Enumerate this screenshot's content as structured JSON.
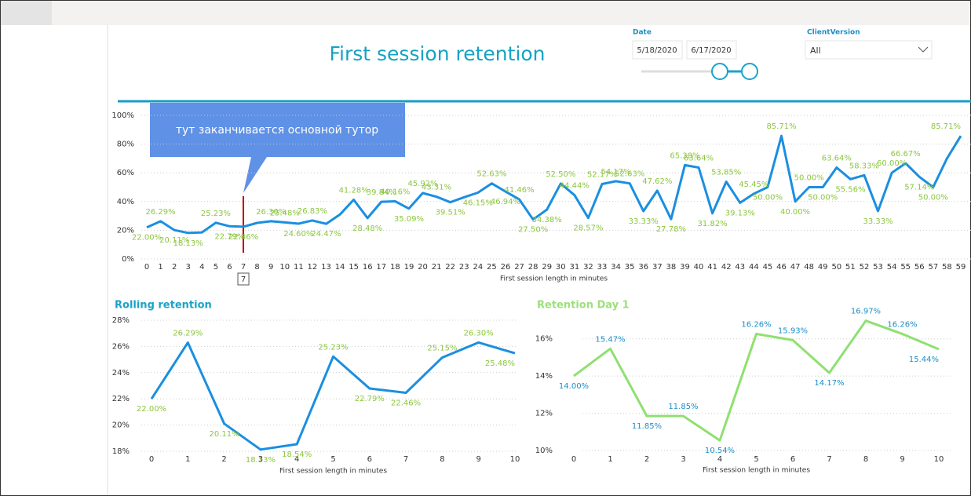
{
  "title": "First session retention",
  "date_slicer": {
    "label": "Date",
    "start": "5/18/2020",
    "end": "6/17/2020"
  },
  "client_slicer": {
    "label": "ClientVersion",
    "value": "All"
  },
  "chart_data": [
    {
      "type": "line",
      "x_label": "First session length in minutes",
      "color": "#1a8fe0",
      "label_color": "#8cc63f",
      "grid": true,
      "annotation": {
        "text": "тут заканчивается основной тутор",
        "x": 7
      },
      "categories": [
        0,
        1,
        2,
        3,
        4,
        5,
        6,
        7,
        8,
        9,
        10,
        11,
        12,
        13,
        14,
        15,
        16,
        17,
        18,
        19,
        20,
        21,
        22,
        23,
        24,
        25,
        26,
        27,
        28,
        29,
        30,
        31,
        32,
        33,
        34,
        35,
        36,
        37,
        38,
        39,
        40,
        41,
        42,
        43,
        44,
        45,
        46,
        47,
        48,
        49,
        50,
        51,
        52,
        53,
        54,
        55,
        56,
        57,
        58,
        59
      ],
      "values": [
        22.0,
        26.29,
        20.11,
        18.13,
        18.54,
        25.23,
        22.79,
        22.46,
        25.15,
        26.3,
        25.48,
        24.6,
        26.83,
        24.47,
        31.0,
        41.28,
        28.48,
        39.84,
        40.16,
        35.09,
        45.92,
        43.31,
        39.51,
        43.0,
        46.15,
        52.63,
        46.94,
        41.46,
        27.5,
        34.38,
        52.5,
        44.44,
        28.57,
        52.17,
        54.17,
        52.63,
        33.33,
        47.62,
        27.78,
        65.38,
        63.64,
        31.82,
        53.85,
        39.13,
        45.45,
        50.0,
        85.71,
        40.0,
        50.0,
        50.0,
        63.64,
        55.56,
        58.33,
        33.33,
        60.0,
        66.67,
        57.14,
        50.0,
        70.0,
        85.71
      ],
      "value_labels": [
        "22.00%",
        "26.29%",
        "20.11%",
        "18.13%",
        null,
        "25.23%",
        "22.79%",
        "22.46%",
        null,
        "26.30%",
        "25.48%",
        "24.60%",
        "26.83%",
        "24.47%",
        null,
        "41.28%",
        "28.48%",
        "39.84%",
        "40.16%",
        "35.09%",
        "45.92%",
        "43.31%",
        "39.51%",
        null,
        "46.15%",
        "52.63%",
        "46.94%",
        "41.46%",
        "27.50%",
        "34.38%",
        "52.50%",
        "44.44%",
        "28.57%",
        "52.17%",
        "54.17%",
        "52.63%",
        "33.33%",
        "47.62%",
        "27.78%",
        "65.38%",
        "63.64%",
        "31.82%",
        "53.85%",
        "39.13%",
        "45.45%",
        "50.00%",
        "85.71%",
        "40.00%",
        "50.00%",
        "50.00%",
        "63.64%",
        "55.56%",
        "58.33%",
        "33.33%",
        "60.00%",
        "66.67%",
        "57.14%",
        "50.00%",
        null,
        "85.71%"
      ],
      "ylim": [
        0,
        100
      ],
      "yticks": [
        {
          "value": 0,
          "label": "0%"
        },
        {
          "value": 20,
          "label": "20%"
        },
        {
          "value": 40,
          "label": "40%"
        },
        {
          "value": 60,
          "label": "60%"
        },
        {
          "value": 80,
          "label": "80%"
        },
        {
          "value": 100,
          "label": "100%"
        }
      ]
    },
    {
      "type": "line",
      "title": "Rolling retention",
      "x_label": "First session length in minutes",
      "color": "#1a8fe0",
      "label_color": "#8cc63f",
      "grid": true,
      "categories": [
        0,
        1,
        2,
        3,
        4,
        5,
        6,
        7,
        8,
        9,
        10
      ],
      "values": [
        22.0,
        26.29,
        20.11,
        18.13,
        18.54,
        25.23,
        22.79,
        22.46,
        25.15,
        26.3,
        25.48
      ],
      "value_labels": [
        "22.00%",
        "26.29%",
        "20.11%",
        "18.13%",
        "18.54%",
        "25.23%",
        "22.79%",
        "22.46%",
        "25.15%",
        "26.30%",
        "25.48%"
      ],
      "ylim": [
        18,
        28
      ],
      "yticks": [
        {
          "value": 18,
          "label": "18%"
        },
        {
          "value": 20,
          "label": "20%"
        },
        {
          "value": 22,
          "label": "22%"
        },
        {
          "value": 24,
          "label": "24%"
        },
        {
          "value": 26,
          "label": "26%"
        },
        {
          "value": 28,
          "label": "28%"
        }
      ]
    },
    {
      "type": "line",
      "title": "Retention Day 1",
      "x_label": "First session length in minutes",
      "color": "#8fe070",
      "label_color": "#1a8fc8",
      "grid": true,
      "categories": [
        0,
        1,
        2,
        3,
        4,
        5,
        6,
        7,
        8,
        9,
        10
      ],
      "values": [
        14.0,
        15.47,
        11.85,
        11.85,
        10.54,
        16.26,
        15.93,
        14.17,
        16.97,
        16.26,
        15.44
      ],
      "value_labels": [
        "14.00%",
        "15.47%",
        "11.85%",
        "11.85%",
        "10.54%",
        "16.26%",
        "15.93%",
        "14.17%",
        "16.97%",
        "16.26%",
        "15.44%"
      ],
      "ylim": [
        10,
        17
      ],
      "yticks": [
        {
          "value": 10,
          "label": "10%"
        },
        {
          "value": 12,
          "label": "12%"
        },
        {
          "value": 14,
          "label": "14%"
        },
        {
          "value": 16,
          "label": "16%"
        }
      ]
    }
  ]
}
